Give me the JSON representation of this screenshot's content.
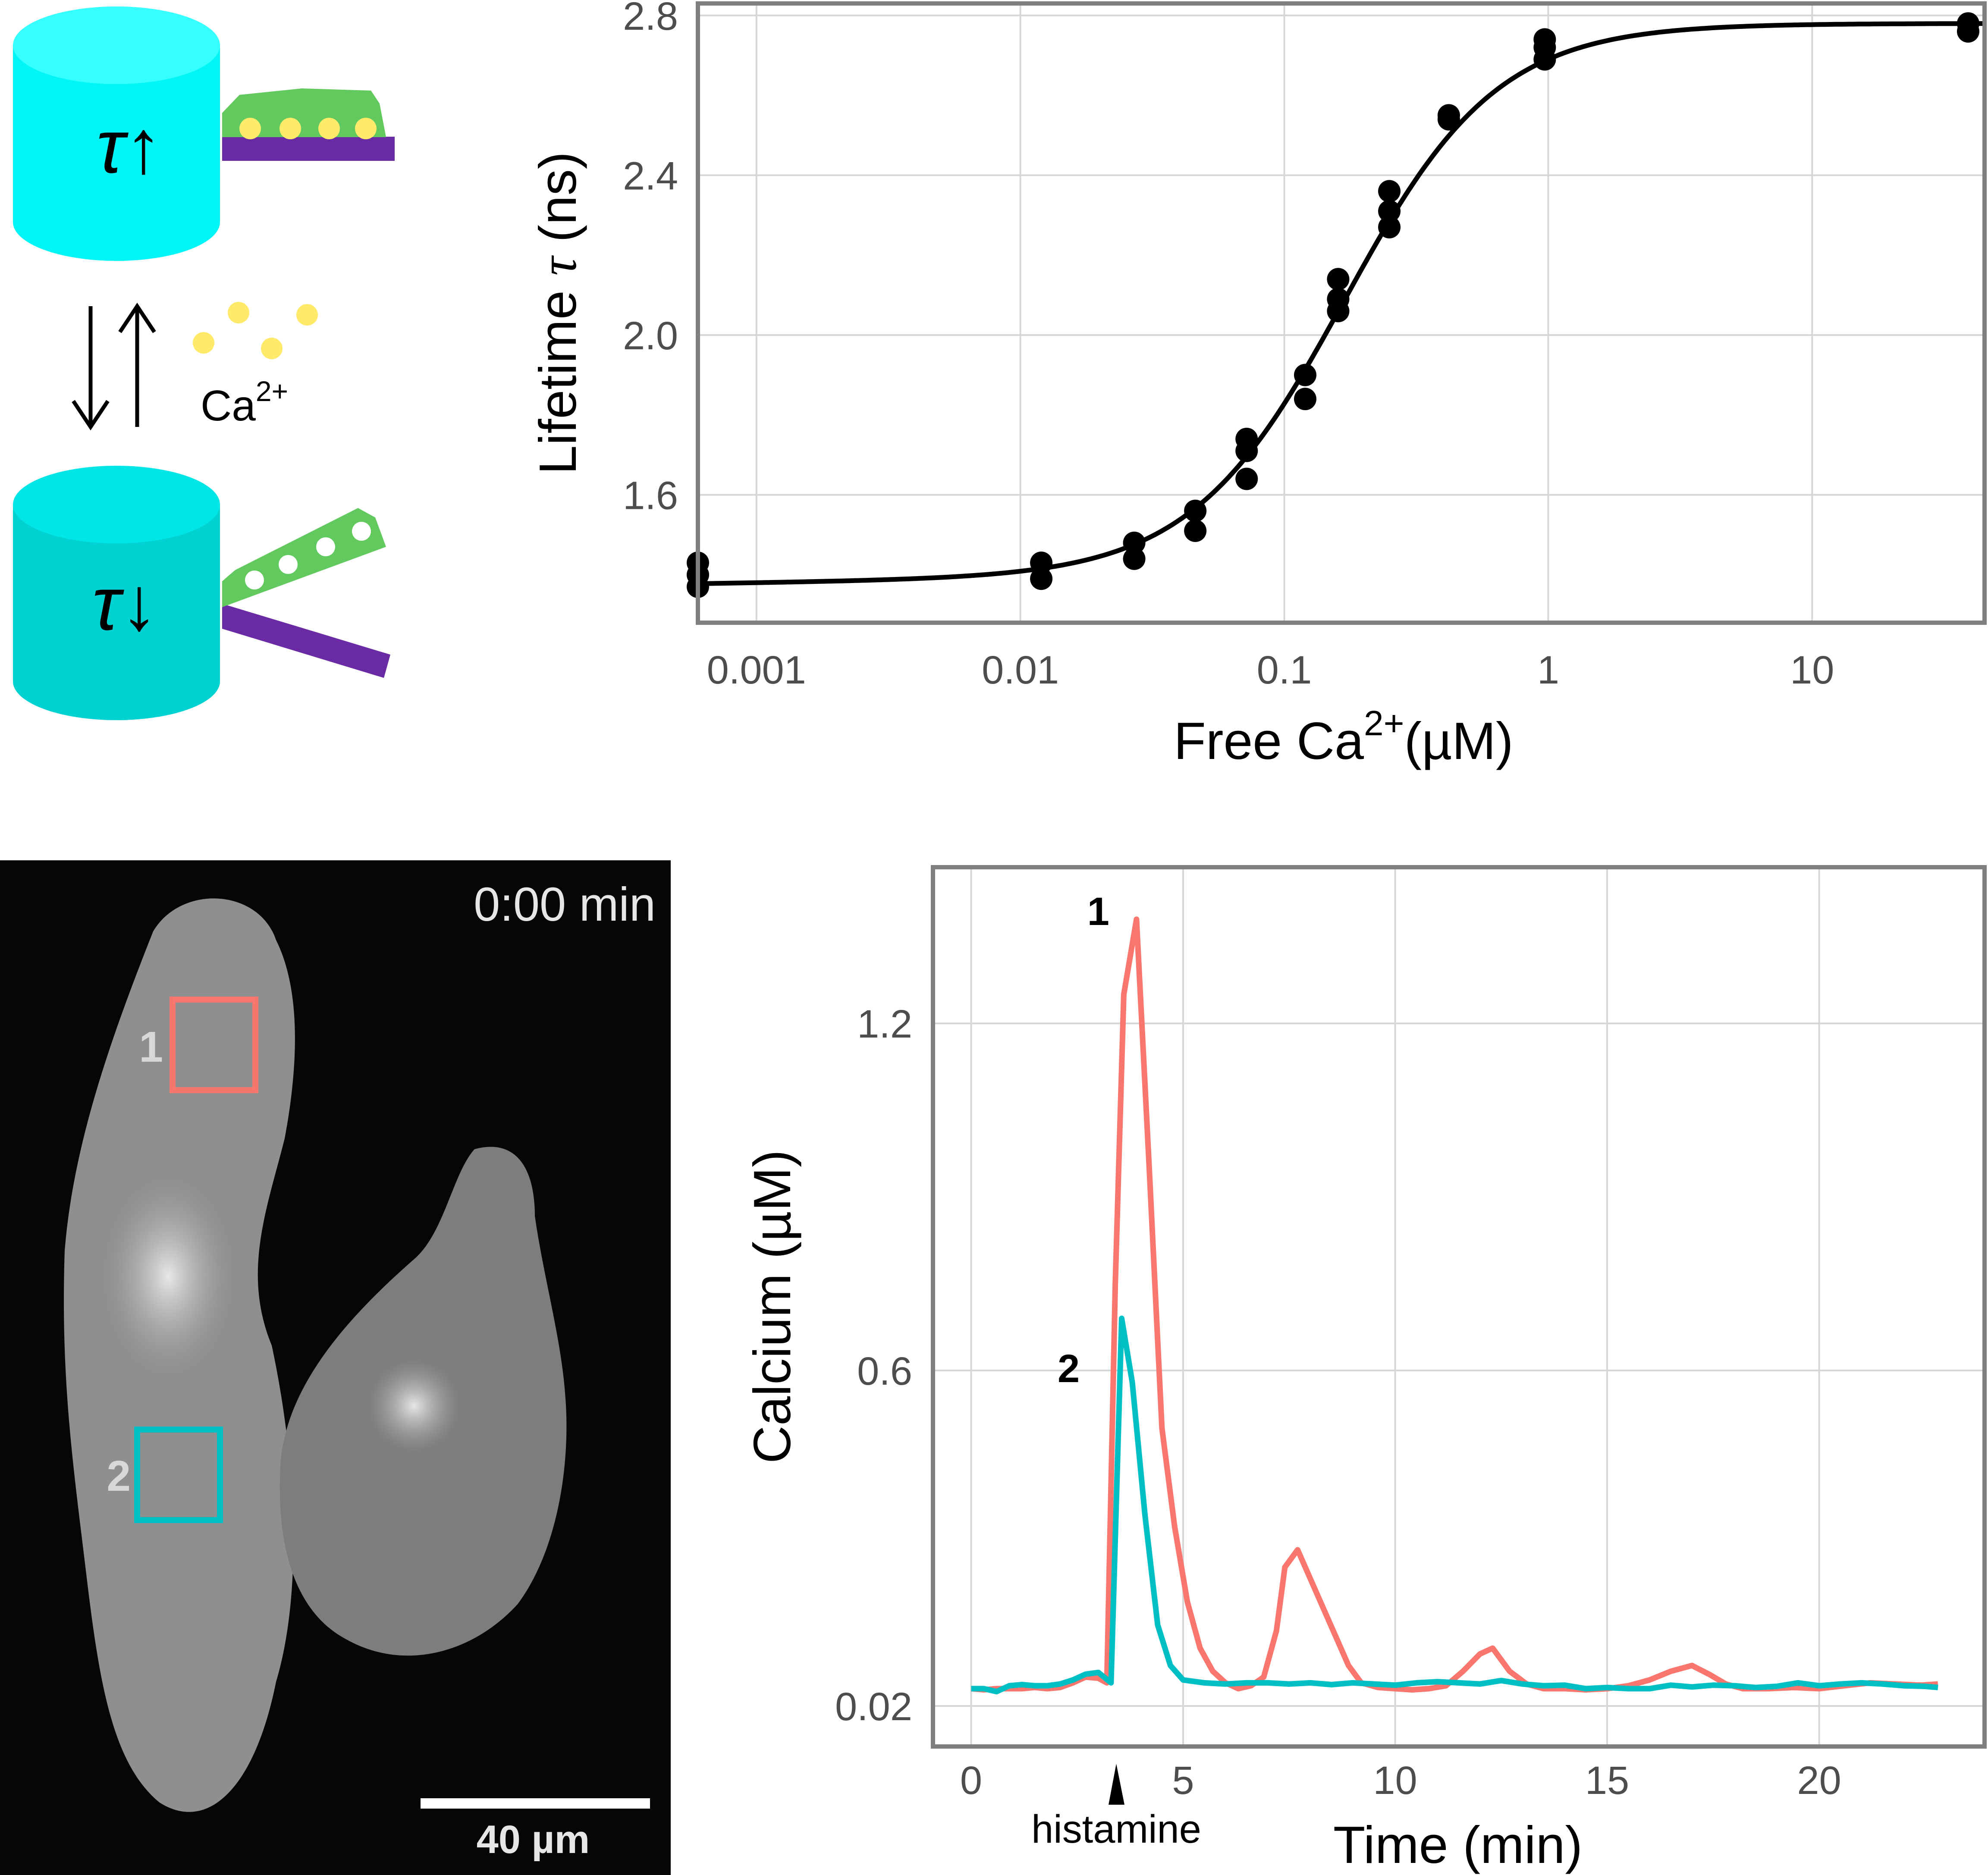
{
  "schematic": {
    "bound_label": "τ↑",
    "unbound_label": "τ↓",
    "ion_label": "Ca",
    "ion_charge": "2+",
    "colors": {
      "cyan_top": "#00f6f6",
      "cyan_bottom": "#00d2d2",
      "green": "#62c95f",
      "yellow": "#ffea6a",
      "purple": "#6a2aa4"
    }
  },
  "micrograph": {
    "time_label": "0:00 min",
    "scale_label": "40 µm",
    "roi1_label": "1",
    "roi2_label": "2",
    "roi1_color": "#f8766d",
    "roi2_color": "#00bfc4"
  },
  "chart_data": [
    {
      "type": "scatter",
      "xlabel_prefix": "Free Ca",
      "xlabel_sup": "2+",
      "xlabel_suffix": "(µM)",
      "ylabel_prefix": "Lifetime ",
      "ylabel_symbol": "τ",
      "ylabel_suffix": " (ns)",
      "x_scale": "log10",
      "xlim": [
        0.0006,
        45
      ],
      "ylim": [
        1.28,
        2.83
      ],
      "x_ticks": [
        0.001,
        0.01,
        0.1,
        1,
        10
      ],
      "x_tick_labels": [
        "0.001",
        "0.01",
        "0.1",
        "1",
        "10"
      ],
      "y_ticks": [
        1.6,
        2.0,
        2.4,
        2.8
      ],
      "y_tick_labels": [
        "1.6",
        "2.0",
        "2.4",
        "2.8"
      ],
      "grid": true,
      "points": [
        [
          0.0006,
          1.43
        ],
        [
          0.0006,
          1.4
        ],
        [
          0.0006,
          1.37
        ],
        [
          0.012,
          1.43
        ],
        [
          0.012,
          1.39
        ],
        [
          0.027,
          1.48
        ],
        [
          0.027,
          1.44
        ],
        [
          0.046,
          1.56
        ],
        [
          0.046,
          1.51
        ],
        [
          0.072,
          1.74
        ],
        [
          0.072,
          1.71
        ],
        [
          0.072,
          1.64
        ],
        [
          0.12,
          1.9
        ],
        [
          0.12,
          1.84
        ],
        [
          0.16,
          2.14
        ],
        [
          0.16,
          2.09
        ],
        [
          0.16,
          2.06
        ],
        [
          0.25,
          2.36
        ],
        [
          0.25,
          2.31
        ],
        [
          0.25,
          2.27
        ],
        [
          0.42,
          2.55
        ],
        [
          0.42,
          2.54
        ],
        [
          0.97,
          2.74
        ],
        [
          0.97,
          2.72
        ],
        [
          0.97,
          2.69
        ],
        [
          39,
          2.78
        ],
        [
          39,
          2.76
        ]
      ],
      "fit_curve": {
        "model": "hill",
        "min": 1.39,
        "max": 2.78,
        "kd": 0.17,
        "n": 1.5,
        "baseline_slope_per_decade": 0.0097,
        "baseline_ref_x": 0.012
      }
    },
    {
      "type": "line",
      "xlabel": "Time (min)",
      "ylabel": "Calcium (µM)",
      "xlim": [
        -0.9,
        23.9
      ],
      "ylim": [
        -0.05,
        1.47
      ],
      "x_ticks": [
        0,
        5,
        10,
        15,
        20
      ],
      "x_tick_labels": [
        "0",
        "5",
        "10",
        "15",
        "20"
      ],
      "y_ticks": [
        0.02,
        0.6,
        1.2
      ],
      "y_tick_labels": [
        "0.02",
        "0.6",
        "1.2"
      ],
      "grid": true,
      "annotation": {
        "label": "histamine",
        "x": 3.3
      },
      "series": [
        {
          "name": "1",
          "label_position": {
            "x": 3.0,
            "y": 1.37
          },
          "color": "#f8766d",
          "points": [
            [
              0,
              0.05
            ],
            [
              0.3,
              0.048
            ],
            [
              0.6,
              0.05
            ],
            [
              0.9,
              0.05
            ],
            [
              1.2,
              0.05
            ],
            [
              1.5,
              0.052
            ],
            [
              1.8,
              0.05
            ],
            [
              2.1,
              0.052
            ],
            [
              2.4,
              0.06
            ],
            [
              2.7,
              0.07
            ],
            [
              3.0,
              0.068
            ],
            [
              3.2,
              0.06
            ],
            [
              3.4,
              0.75
            ],
            [
              3.6,
              1.25
            ],
            [
              3.9,
              1.38
            ],
            [
              4.2,
              0.95
            ],
            [
              4.5,
              0.5
            ],
            [
              4.8,
              0.33
            ],
            [
              5.1,
              0.2
            ],
            [
              5.4,
              0.12
            ],
            [
              5.7,
              0.08
            ],
            [
              6.0,
              0.06
            ],
            [
              6.3,
              0.05
            ],
            [
              6.6,
              0.055
            ],
            [
              6.9,
              0.07
            ],
            [
              7.2,
              0.15
            ],
            [
              7.4,
              0.26
            ],
            [
              7.7,
              0.29
            ],
            [
              8.0,
              0.24
            ],
            [
              8.3,
              0.19
            ],
            [
              8.6,
              0.14
            ],
            [
              8.9,
              0.09
            ],
            [
              9.2,
              0.06
            ],
            [
              9.6,
              0.052
            ],
            [
              10.0,
              0.05
            ],
            [
              10.4,
              0.048
            ],
            [
              10.8,
              0.05
            ],
            [
              11.2,
              0.055
            ],
            [
              11.6,
              0.08
            ],
            [
              12.0,
              0.11
            ],
            [
              12.3,
              0.12
            ],
            [
              12.7,
              0.08
            ],
            [
              13.1,
              0.058
            ],
            [
              13.5,
              0.05
            ],
            [
              14.0,
              0.05
            ],
            [
              14.5,
              0.048
            ],
            [
              15.0,
              0.05
            ],
            [
              15.5,
              0.055
            ],
            [
              16.0,
              0.065
            ],
            [
              16.5,
              0.08
            ],
            [
              17.0,
              0.09
            ],
            [
              17.4,
              0.075
            ],
            [
              17.8,
              0.058
            ],
            [
              18.2,
              0.05
            ],
            [
              18.8,
              0.05
            ],
            [
              19.4,
              0.052
            ],
            [
              20.0,
              0.05
            ],
            [
              20.6,
              0.055
            ],
            [
              21.2,
              0.06
            ],
            [
              21.8,
              0.058
            ],
            [
              22.4,
              0.056
            ],
            [
              22.8,
              0.058
            ]
          ]
        },
        {
          "name": "2",
          "label_position": {
            "x": 2.3,
            "y": 0.58
          },
          "color": "#00bfc4",
          "points": [
            [
              0,
              0.05
            ],
            [
              0.3,
              0.05
            ],
            [
              0.6,
              0.045
            ],
            [
              0.9,
              0.055
            ],
            [
              1.2,
              0.057
            ],
            [
              1.5,
              0.055
            ],
            [
              1.8,
              0.055
            ],
            [
              2.1,
              0.058
            ],
            [
              2.4,
              0.065
            ],
            [
              2.7,
              0.075
            ],
            [
              3.0,
              0.078
            ],
            [
              3.3,
              0.06
            ],
            [
              3.55,
              0.69
            ],
            [
              3.8,
              0.58
            ],
            [
              4.1,
              0.35
            ],
            [
              4.4,
              0.16
            ],
            [
              4.7,
              0.09
            ],
            [
              5.0,
              0.065
            ],
            [
              5.5,
              0.06
            ],
            [
              6.0,
              0.058
            ],
            [
              6.5,
              0.06
            ],
            [
              7.0,
              0.06
            ],
            [
              7.5,
              0.058
            ],
            [
              8.0,
              0.06
            ],
            [
              8.5,
              0.057
            ],
            [
              9.0,
              0.06
            ],
            [
              9.5,
              0.058
            ],
            [
              10.0,
              0.056
            ],
            [
              10.5,
              0.06
            ],
            [
              11.0,
              0.062
            ],
            [
              11.5,
              0.06
            ],
            [
              12.0,
              0.058
            ],
            [
              12.5,
              0.064
            ],
            [
              13.0,
              0.058
            ],
            [
              13.5,
              0.055
            ],
            [
              14.0,
              0.056
            ],
            [
              14.5,
              0.05
            ],
            [
              15.0,
              0.052
            ],
            [
              15.5,
              0.05
            ],
            [
              16.0,
              0.05
            ],
            [
              16.5,
              0.056
            ],
            [
              17.0,
              0.053
            ],
            [
              17.5,
              0.056
            ],
            [
              18.0,
              0.055
            ],
            [
              18.5,
              0.052
            ],
            [
              19.0,
              0.054
            ],
            [
              19.5,
              0.06
            ],
            [
              20.0,
              0.055
            ],
            [
              20.5,
              0.058
            ],
            [
              21.0,
              0.06
            ],
            [
              21.5,
              0.058
            ],
            [
              22.0,
              0.055
            ],
            [
              22.5,
              0.054
            ],
            [
              22.8,
              0.052
            ]
          ]
        }
      ]
    }
  ]
}
